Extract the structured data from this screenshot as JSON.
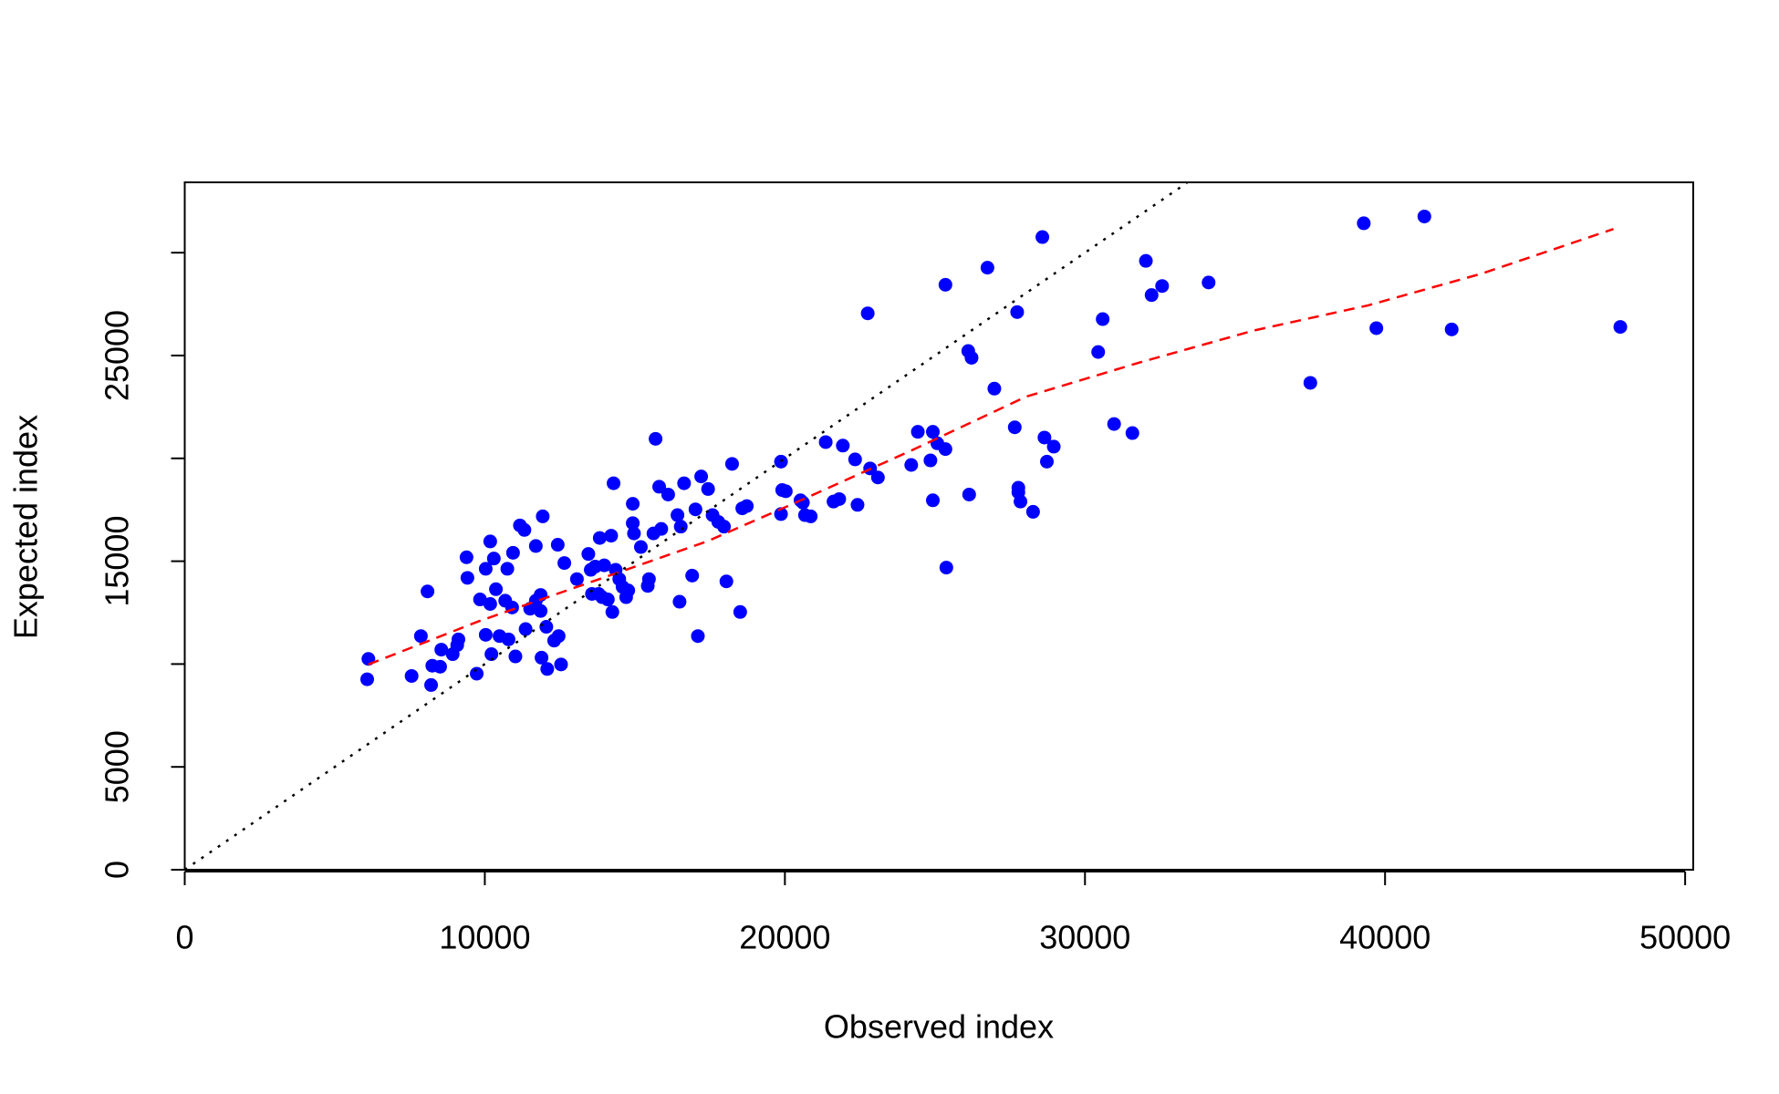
{
  "chart_data": {
    "type": "scatter",
    "xlabel": "Observed index",
    "ylabel": "Expected index",
    "xlim": [
      0,
      50270
    ],
    "ylim": [
      0,
      33420
    ],
    "xticks": [
      0,
      10000,
      20000,
      30000,
      40000,
      50000
    ],
    "yticks": [
      0,
      5000,
      {
        "value": 10000,
        "label": null
      },
      15000,
      {
        "value": 20000,
        "label": null
      },
      25000,
      {
        "value": 30000,
        "label": null
      }
    ],
    "series": [
      {
        "type": "scatter",
        "color": "#0000ff",
        "x": [
          6120,
          6080,
          7560,
          7870,
          8090,
          8210,
          8250,
          8510,
          8550,
          8930,
          9080,
          9120,
          9390,
          9420,
          9730,
          9840,
          10030,
          10030,
          10180,
          10180,
          10220,
          10300,
          10370,
          10490,
          10680,
          10750,
          10790,
          10910,
          10940,
          11020,
          11170,
          11320,
          11360,
          11510,
          11700,
          11700,
          11860,
          11860,
          11890,
          11930,
          12050,
          12080,
          12310,
          12430,
          12460,
          12540,
          12650,
          13070,
          13450,
          13530,
          13570,
          13680,
          13790,
          13830,
          13910,
          13980,
          14100,
          14210,
          14250,
          14290,
          14360,
          14480,
          14590,
          14710,
          14780,
          14930,
          14930,
          14970,
          15200,
          15430,
          15470,
          15620,
          15690,
          15810,
          15880,
          16110,
          16420,
          16490,
          16530,
          16640,
          16910,
          17020,
          17100,
          17210,
          17440,
          17590,
          17780,
          17970,
          18050,
          18240,
          18510,
          18580,
          18730,
          19870,
          19870,
          19910,
          20030,
          20520,
          20600,
          20670,
          20860,
          21360,
          21620,
          21810,
          21930,
          22340,
          22420,
          22760,
          22840,
          23100,
          24210,
          24430,
          24850,
          24930,
          24930,
          25080,
          25350,
          25350,
          25380,
          26140,
          26110,
          26220,
          26750,
          26980,
          27660,
          27740,
          27780,
          27780,
          27850,
          28270,
          28580,
          28650,
          28730,
          28960,
          30440,
          30590,
          30970,
          31580,
          32030,
          32220,
          32570,
          34120,
          37510,
          39290,
          39710,
          41310,
          42220,
          47840
        ],
        "y": [
          10250,
          9260,
          9420,
          11360,
          13530,
          8980,
          9920,
          9870,
          10700,
          10480,
          10920,
          11200,
          15190,
          14190,
          9530,
          13140,
          14630,
          11420,
          12920,
          15960,
          10480,
          15130,
          13640,
          11360,
          13080,
          14630,
          11200,
          12750,
          15410,
          10370,
          16740,
          16520,
          11700,
          12690,
          15740,
          13080,
          13360,
          12580,
          10310,
          17180,
          11810,
          9760,
          11140,
          15800,
          11360,
          9980,
          14910,
          14130,
          15350,
          14580,
          13410,
          14740,
          13410,
          16130,
          13250,
          14800,
          13140,
          16240,
          12530,
          18790,
          14580,
          14130,
          13750,
          13250,
          13580,
          17790,
          16850,
          16350,
          15690,
          13800,
          14130,
          16350,
          20950,
          18620,
          16570,
          18240,
          17240,
          13030,
          16680,
          18790,
          14300,
          17520,
          11360,
          19120,
          18510,
          17240,
          16910,
          16680,
          14020,
          19730,
          12530,
          17570,
          17680,
          19840,
          17290,
          18460,
          18400,
          17960,
          17850,
          17240,
          17180,
          20790,
          17900,
          18020,
          20620,
          19950,
          17740,
          27050,
          19510,
          19070,
          19680,
          21290,
          19900,
          17960,
          21290,
          20730,
          28440,
          20450,
          14690,
          18240,
          25220,
          24890,
          29270,
          23390,
          21510,
          27110,
          18570,
          18350,
          17900,
          17400,
          30760,
          21010,
          19840,
          20570,
          25170,
          26770,
          21670,
          21230,
          29600,
          27940,
          28380,
          28550,
          23670,
          31430,
          26330,
          31760,
          26270,
          26390
        ]
      },
      {
        "type": "line",
        "color": "#ff0000",
        "dash": "dashed",
        "x": [
          6120,
          9800,
          13600,
          17400,
          20440,
          24240,
          28040,
          31840,
          35640,
          39440,
          43240,
          47610
        ],
        "y": [
          9980,
          12080,
          14020,
          15960,
          17900,
          20400,
          23000,
          24670,
          26220,
          27440,
          28990,
          31150
        ]
      },
      {
        "type": "line",
        "color": "#000000",
        "dash": "dotted",
        "x": [
          0,
          33400
        ],
        "y": [
          0,
          33400
        ]
      }
    ]
  }
}
